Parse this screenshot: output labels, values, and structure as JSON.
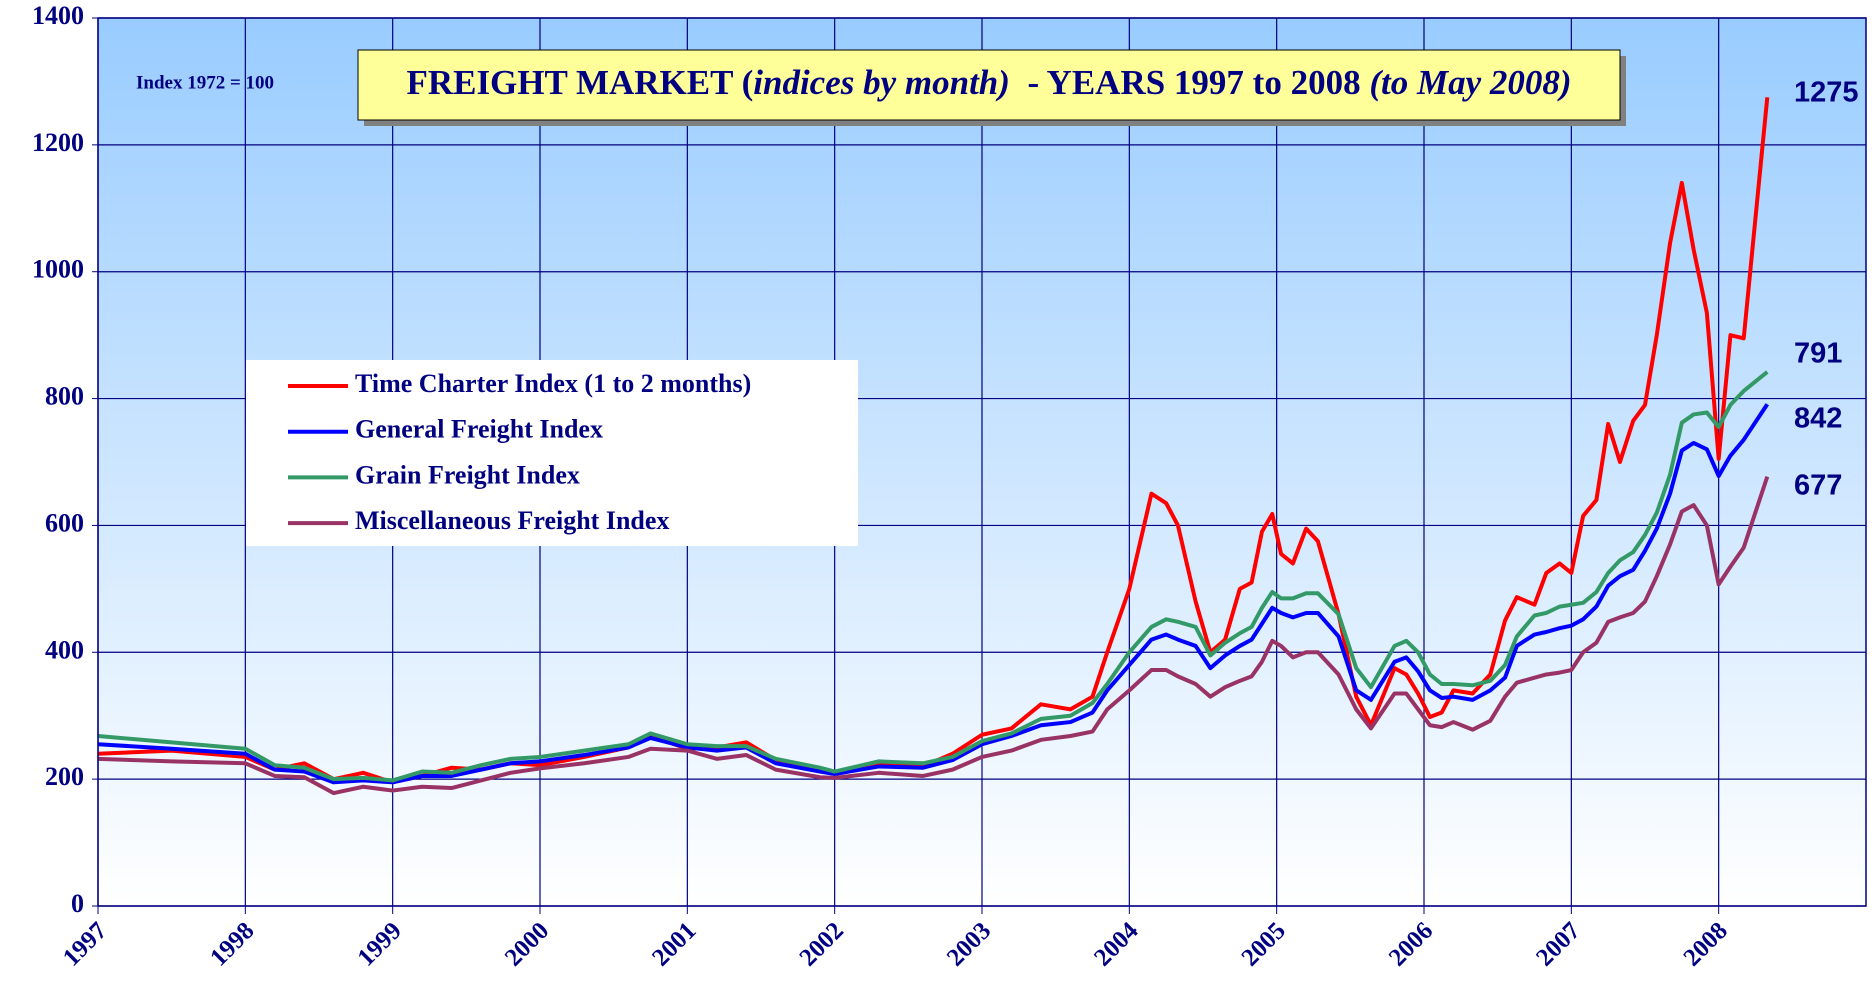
{
  "chart_data": {
    "type": "line",
    "title": [
      {
        "text": "FREIGHT MARKET (",
        "italic": false
      },
      {
        "text": "indices by month)",
        "italic": true
      },
      {
        "text": "  - YEARS 1997 to 2008 ",
        "italic": false
      },
      {
        "text": "(to May 2008)",
        "italic": true
      }
    ],
    "annotation": "Index 1972 = 100",
    "xlim": [
      1997,
      2009
    ],
    "xticks": [
      1997,
      1998,
      1999,
      2000,
      2001,
      2002,
      2003,
      2004,
      2005,
      2006,
      2007,
      2008
    ],
    "ylim": [
      0,
      1400
    ],
    "yticks": [
      0,
      200,
      400,
      600,
      800,
      1000,
      1200,
      1400
    ],
    "grid": true,
    "x": [
      1997.0,
      1997.5,
      1998.0,
      1998.2,
      1998.4,
      1998.6,
      1998.8,
      1999.0,
      1999.2,
      1999.4,
      1999.6,
      1999.8,
      2000.0,
      2000.3,
      2000.6,
      2000.75,
      2001.0,
      2001.2,
      2001.4,
      2001.6,
      2001.9,
      2002.0,
      2002.3,
      2002.6,
      2002.8,
      2003.0,
      2003.2,
      2003.4,
      2003.6,
      2003.75,
      2003.85,
      2004.0,
      2004.15,
      2004.25,
      2004.33,
      2004.45,
      2004.55,
      2004.65,
      2004.75,
      2004.83,
      2004.9,
      2004.97,
      2005.03,
      2005.11,
      2005.2,
      2005.28,
      2005.42,
      2005.54,
      2005.64,
      2005.8,
      2005.88,
      2005.96,
      2006.04,
      2006.12,
      2006.2,
      2006.33,
      2006.45,
      2006.55,
      2006.63,
      2006.75,
      2006.83,
      2006.92,
      2007.0,
      2007.08,
      2007.17,
      2007.25,
      2007.33,
      2007.42,
      2007.5,
      2007.58,
      2007.67,
      2007.75,
      2007.83,
      2007.92,
      2008.0,
      2008.08,
      2008.17,
      2008.33
    ],
    "series": [
      {
        "name": "Time Charter Index (1 to 2 months)",
        "color": "#ff0000",
        "values": [
          240,
          245,
          235,
          215,
          225,
          200,
          210,
          195,
          205,
          218,
          215,
          225,
          222,
          235,
          250,
          268,
          248,
          250,
          258,
          230,
          212,
          210,
          222,
          220,
          240,
          270,
          280,
          318,
          310,
          330,
          400,
          500,
          650,
          635,
          600,
          480,
          400,
          420,
          500,
          510,
          590,
          618,
          555,
          540,
          595,
          575,
          460,
          330,
          285,
          375,
          365,
          335,
          298,
          305,
          340,
          335,
          365,
          450,
          487,
          475,
          525,
          540,
          525,
          615,
          640,
          760,
          700,
          765,
          790,
          900,
          1045,
          1140,
          1035,
          935,
          705,
          900,
          895,
          1275
        ]
      },
      {
        "name": "General Freight Index",
        "color": "#0000ff",
        "values": [
          255,
          248,
          240,
          215,
          212,
          195,
          198,
          195,
          205,
          205,
          215,
          225,
          228,
          238,
          250,
          265,
          250,
          245,
          250,
          225,
          212,
          208,
          220,
          218,
          230,
          255,
          268,
          285,
          290,
          305,
          340,
          380,
          420,
          428,
          420,
          410,
          375,
          395,
          410,
          420,
          445,
          470,
          462,
          455,
          462,
          462,
          425,
          340,
          325,
          385,
          392,
          370,
          340,
          328,
          330,
          325,
          340,
          360,
          410,
          428,
          432,
          438,
          442,
          452,
          472,
          505,
          520,
          530,
          560,
          595,
          650,
          718,
          730,
          720,
          678,
          710,
          735,
          791
        ]
      },
      {
        "name": "Grain Freight Index",
        "color": "#339966",
        "values": [
          268,
          258,
          248,
          222,
          218,
          200,
          202,
          198,
          212,
          210,
          222,
          232,
          235,
          245,
          255,
          272,
          255,
          252,
          252,
          232,
          218,
          212,
          228,
          225,
          235,
          260,
          272,
          295,
          300,
          320,
          350,
          400,
          440,
          452,
          448,
          440,
          395,
          415,
          430,
          440,
          470,
          495,
          485,
          485,
          493,
          493,
          460,
          375,
          345,
          410,
          418,
          400,
          365,
          350,
          350,
          348,
          355,
          380,
          425,
          458,
          462,
          472,
          475,
          478,
          495,
          525,
          545,
          558,
          585,
          620,
          680,
          762,
          775,
          778,
          755,
          790,
          812,
          842
        ]
      },
      {
        "name": "Miscellaneous Freight Index",
        "color": "#993366",
        "values": [
          232,
          228,
          225,
          205,
          203,
          178,
          188,
          182,
          188,
          186,
          198,
          210,
          217,
          225,
          235,
          248,
          245,
          232,
          238,
          215,
          203,
          202,
          210,
          205,
          215,
          235,
          245,
          262,
          268,
          275,
          310,
          340,
          372,
          372,
          362,
          350,
          330,
          345,
          355,
          362,
          385,
          418,
          410,
          392,
          400,
          400,
          365,
          310,
          280,
          335,
          335,
          310,
          285,
          282,
          290,
          278,
          292,
          330,
          352,
          360,
          365,
          368,
          372,
          400,
          415,
          448,
          455,
          462,
          480,
          520,
          570,
          622,
          632,
          600,
          507,
          535,
          565,
          677
        ]
      }
    ]
  }
}
